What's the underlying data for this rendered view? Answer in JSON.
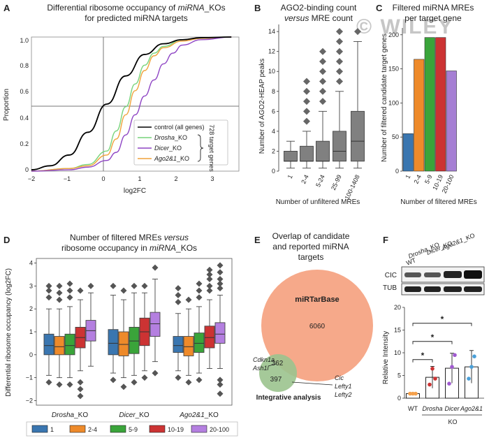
{
  "watermark": "© WILEY",
  "panelA": {
    "letter": "A",
    "title_pre": "Differential ribosome occupancy of ",
    "title_em": "miRNA",
    "title_post": "_KOs",
    "title_line2": "for predicted miRNA targets",
    "xlabel": "log2FC",
    "ylabel": "Proportion",
    "xticks": [
      "−2",
      "−1",
      "0",
      "1",
      "2",
      "3"
    ],
    "yticks": [
      "0",
      "0.2",
      "0.4",
      "0.6",
      "0.8",
      "1.0"
    ],
    "legend": [
      {
        "label": "control (all genes)",
        "color": "#000000"
      },
      {
        "label": "Drosha_KO",
        "em": "Drosha",
        "suffix": "_KO",
        "color": "#77d47a"
      },
      {
        "label": "Dicer_KO",
        "em": "Dicer",
        "suffix": "_KO",
        "color": "#8e44c4"
      },
      {
        "label": "Ago2&1_KO",
        "em": "Ago2&1",
        "suffix": "_KO",
        "color": "#f0a23a"
      }
    ],
    "bracket_label": "728 target genes"
  },
  "panelB": {
    "letter": "B",
    "title_line1": "AGO2-binding count",
    "title_em": "versus",
    "title_post": " MRE count",
    "ylabel": "Number of AGO2-HEAP peaks",
    "xlabel": "Number of unfiltered MREs",
    "yticks": [
      "0",
      "2",
      "4",
      "6",
      "8",
      "10",
      "12",
      "14"
    ]
  },
  "panelC": {
    "letter": "C",
    "title_line1": "Filtered miRNA MREs",
    "title_line2": "per target gene",
    "ylabel": "Number of filtered candidate target genes",
    "xlabel": "Number of filtered MREs",
    "yticks": [
      "0",
      "50",
      "100",
      "150",
      "200"
    ]
  },
  "panelD": {
    "letter": "D",
    "title_line1_pre": "Number of filtered MREs ",
    "title_line1_em": "versus",
    "title_line2_pre": "ribosome occupancy in ",
    "title_line2_em": "miRNA",
    "title_line2_post": "_KOs",
    "ylabel": "Differential ribosome occupancy (log2FC)",
    "yticks": [
      "−2",
      "−1",
      "0",
      "1",
      "2",
      "3",
      "4"
    ],
    "groups": [
      {
        "em": "Drosha",
        "suffix": "_KO"
      },
      {
        "em": "Dicer",
        "suffix": "_KO"
      },
      {
        "em": "Ago2&1",
        "suffix": "_KO"
      }
    ],
    "legend": [
      "1",
      "2-4",
      "5-9",
      "10-19",
      "20-100"
    ]
  },
  "panelE": {
    "letter": "E",
    "title_line1": "Overlap of candidate",
    "title_line2": "and reported miRNA",
    "title_line3": "targets",
    "big_label": "miRTarBase",
    "big_value": "6060",
    "overlap_value": "362",
    "small_value": "397",
    "small_label": "Integrative analysis",
    "left_genes": [
      "Cdkn1a",
      "Ash1l"
    ],
    "right_genes": [
      "Cic",
      "Lefty1",
      "Lefty2"
    ]
  },
  "panelF": {
    "letter": "F",
    "lane_labels": [
      "WT",
      "Drosha_KO",
      "Dicer_KO",
      "Ago2&1_KO"
    ],
    "blot_labels": [
      "CIC",
      "TUB"
    ],
    "ylabel": "Relative Intensity",
    "yticks": [
      "0",
      "5",
      "10",
      "15",
      "20"
    ],
    "xlabels": [
      "WT",
      "Drosha",
      "Dicer",
      "Ago2&1"
    ],
    "group_label": "KO",
    "star": "*"
  },
  "chart_data": [
    {
      "panel": "A",
      "type": "line",
      "title": "Differential ribosome occupancy of miRNA_KOs for predicted miRNA targets",
      "xlabel": "log2FC",
      "ylabel": "Proportion",
      "xlim": [
        -2,
        3.5
      ],
      "ylim": [
        0,
        1
      ],
      "reference_lines": {
        "x": 0,
        "y": 0.5
      },
      "legend_placement": "center-right",
      "series": [
        {
          "name": "control (all genes)",
          "color": "#000000",
          "x": [
            -2,
            -1.5,
            -1,
            -0.5,
            0,
            0.5,
            1,
            1.5,
            2,
            2.5,
            3.3
          ],
          "y": [
            0.01,
            0.04,
            0.12,
            0.29,
            0.5,
            0.71,
            0.87,
            0.95,
            0.98,
            0.995,
            1.0
          ]
        },
        {
          "name": "Drosha_KO",
          "color": "#77d47a",
          "x": [
            -2,
            -1,
            -0.5,
            0,
            0.25,
            0.5,
            0.75,
            1,
            1.25,
            1.5,
            2,
            2.5,
            3.3
          ],
          "y": [
            0.0,
            0.02,
            0.05,
            0.15,
            0.3,
            0.48,
            0.65,
            0.79,
            0.88,
            0.93,
            0.98,
            0.995,
            1.0
          ]
        },
        {
          "name": "Dicer_KO",
          "color": "#8e44c4",
          "x": [
            -2,
            -1,
            -0.5,
            0,
            0.25,
            0.5,
            0.75,
            1,
            1.25,
            1.5,
            1.75,
            2,
            2.5,
            3.3
          ],
          "y": [
            0.0,
            0.01,
            0.03,
            0.08,
            0.14,
            0.27,
            0.42,
            0.56,
            0.68,
            0.8,
            0.88,
            0.94,
            0.98,
            1.0
          ]
        },
        {
          "name": "Ago2&1_KO",
          "color": "#f0a23a",
          "x": [
            -2,
            -1,
            -0.5,
            0,
            0.25,
            0.5,
            0.75,
            1,
            1.25,
            1.5,
            2,
            2.5,
            3.3
          ],
          "y": [
            0.0,
            0.02,
            0.04,
            0.12,
            0.24,
            0.42,
            0.6,
            0.75,
            0.86,
            0.92,
            0.97,
            0.99,
            1.0
          ]
        }
      ]
    },
    {
      "panel": "B",
      "type": "box",
      "title": "AGO2-binding count versus MRE count",
      "xlabel": "Number of unfiltered MREs",
      "ylabel": "Number of AGO2-HEAP peaks",
      "ylim": [
        0,
        14.5
      ],
      "color": "#808080",
      "categories": [
        "1",
        "2-4",
        "5-24",
        "25-99",
        "100-1408"
      ],
      "boxes": [
        {
          "whisker_low": 0.3,
          "q1": 1,
          "median": 1,
          "q3": 2,
          "whisker_high": 3,
          "outliers": []
        },
        {
          "whisker_low": 0.3,
          "q1": 1,
          "median": 1,
          "q3": 2.5,
          "whisker_high": 4,
          "outliers": [
            5,
            6,
            7,
            8,
            9
          ]
        },
        {
          "whisker_low": 0.3,
          "q1": 1,
          "median": 1,
          "q3": 3,
          "whisker_high": 6,
          "outliers": [
            7,
            8,
            9,
            10,
            11,
            12
          ]
        },
        {
          "whisker_low": 0.3,
          "q1": 1,
          "median": 2,
          "q3": 4,
          "whisker_high": 8,
          "outliers": [
            9,
            10,
            11,
            12,
            13,
            14
          ]
        },
        {
          "whisker_low": 0.3,
          "q1": 1,
          "median": 3,
          "q3": 6,
          "whisker_high": 13,
          "outliers": [
            14
          ]
        }
      ]
    },
    {
      "panel": "C",
      "type": "bar",
      "title": "Filtered miRNA MREs per target gene",
      "xlabel": "Number of filtered MREs",
      "ylabel": "Number of filtered candidate target genes",
      "ylim": [
        0,
        210
      ],
      "categories": [
        "1",
        "2-4",
        "5-9",
        "10-19",
        "20-100"
      ],
      "values": [
        55,
        164,
        196,
        196,
        147
      ],
      "colors": [
        "#3a76b0",
        "#ee8a2a",
        "#3aa43a",
        "#cc3333",
        "#a67fd4"
      ]
    },
    {
      "panel": "D",
      "type": "box",
      "title": "Number of filtered MREs versus ribosome occupancy in miRNA_KOs",
      "ylabel": "Differential ribosome occupancy (log2FC)",
      "ylim": [
        -2.2,
        4.2
      ],
      "legend_placement": "bottom",
      "categories": [
        "Drosha_KO",
        "Dicer_KO",
        "Ago2&1_KO"
      ],
      "series": [
        {
          "name": "1",
          "color": "#3a76b0",
          "boxes": [
            {
              "whisker_low": -0.9,
              "q1": 0.0,
              "median": 0.4,
              "q3": 0.9,
              "whisker_high": 2.0,
              "outliers": [
                2.5,
                2.8,
                3.0,
                -1.2
              ]
            },
            {
              "whisker_low": -0.8,
              "q1": 0.0,
              "median": 0.5,
              "q3": 1.1,
              "whisker_high": 2.6,
              "outliers": [
                3.0,
                -1.1
              ]
            },
            {
              "whisker_low": -0.7,
              "q1": 0.1,
              "median": 0.4,
              "q3": 0.8,
              "whisker_high": 1.8,
              "outliers": [
                2.3,
                2.6,
                2.9,
                -1.0
              ]
            }
          ]
        },
        {
          "name": "2-4",
          "color": "#ee8a2a",
          "boxes": [
            {
              "whisker_low": -1.0,
              "q1": 0.0,
              "median": 0.35,
              "q3": 0.8,
              "whisker_high": 2.0,
              "outliers": [
                2.4,
                2.7,
                3.0,
                -1.3
              ]
            },
            {
              "whisker_low": -1.0,
              "q1": -0.05,
              "median": 0.45,
              "q3": 1.0,
              "whisker_high": 2.4,
              "outliers": [
                2.8,
                -1.4
              ]
            },
            {
              "whisker_low": -0.9,
              "q1": -0.05,
              "median": 0.35,
              "q3": 0.8,
              "whisker_high": 2.0,
              "outliers": [
                2.4,
                -1.2
              ]
            }
          ]
        },
        {
          "name": "5-9",
          "color": "#3aa43a",
          "boxes": [
            {
              "whisker_low": -1.0,
              "q1": 0.0,
              "median": 0.4,
              "q3": 0.9,
              "whisker_high": 2.1,
              "outliers": [
                2.5,
                2.8,
                3.1,
                -1.3
              ]
            },
            {
              "whisker_low": -0.9,
              "q1": 0.05,
              "median": 0.6,
              "q3": 1.2,
              "whisker_high": 2.7,
              "outliers": [
                3.0,
                -1.2
              ]
            },
            {
              "whisker_low": -0.8,
              "q1": 0.1,
              "median": 0.5,
              "q3": 0.95,
              "whisker_high": 2.1,
              "outliers": [
                2.5,
                2.8,
                3.1,
                -1.1
              ]
            }
          ]
        },
        {
          "name": "10-19",
          "color": "#cc3333",
          "boxes": [
            {
              "whisker_low": -0.7,
              "q1": 0.3,
              "median": 0.75,
              "q3": 1.2,
              "whisker_high": 2.4,
              "outliers": [
                2.8,
                -1.2,
                -1.5,
                -1.8
              ]
            },
            {
              "whisker_low": -0.7,
              "q1": 0.4,
              "median": 1.0,
              "q3": 1.6,
              "whisker_high": 2.7,
              "outliers": [
                3.0,
                -1.0
              ]
            },
            {
              "whisker_low": -0.6,
              "q1": 0.3,
              "median": 0.75,
              "q3": 1.25,
              "whisker_high": 2.4,
              "outliers": [
                2.8,
                3.0,
                3.3,
                3.5,
                3.7
              ]
            }
          ]
        },
        {
          "name": "20-100",
          "color": "#b47fe0",
          "boxes": [
            {
              "whisker_low": -0.5,
              "q1": 0.6,
              "median": 1.05,
              "q3": 1.5,
              "whisker_high": 2.7,
              "outliers": [
                3.0
              ]
            },
            {
              "whisker_low": -0.3,
              "q1": 0.8,
              "median": 1.35,
              "q3": 1.85,
              "whisker_high": 3.3,
              "outliers": [
                3.8,
                -0.8
              ]
            },
            {
              "whisker_low": -0.6,
              "q1": 0.5,
              "median": 0.9,
              "q3": 1.4,
              "whisker_high": 2.6,
              "outliers": [
                2.9,
                3.1,
                3.3,
                3.6,
                3.9,
                -1.1,
                -1.3,
                -1.7
              ]
            }
          ]
        }
      ]
    },
    {
      "panel": "F",
      "type": "bar",
      "ylabel": "Relative Intensity",
      "ylim": [
        0,
        20
      ],
      "categories": [
        "WT",
        "Drosha",
        "Dicer",
        "Ago2&1"
      ],
      "values": [
        1,
        4.6,
        6.6,
        6.9
      ],
      "errors": [
        0.1,
        2.4,
        3.3,
        3.6
      ],
      "points": [
        [
          1,
          1,
          1
        ],
        [
          3,
          6.5,
          4.3
        ],
        [
          3.2,
          6.9,
          9.5
        ],
        [
          4.3,
          6.9,
          9.2
        ]
      ],
      "point_colors": [
        "#f5a04a",
        "#cc3333",
        "#a05ad0",
        "#4a9fd8"
      ],
      "significance": [
        {
          "from": "WT",
          "to": "Drosha",
          "label": "*"
        },
        {
          "from": "WT",
          "to": "Dicer",
          "label": "*"
        },
        {
          "from": "WT",
          "to": "Ago2&1",
          "label": "*"
        }
      ]
    }
  ]
}
